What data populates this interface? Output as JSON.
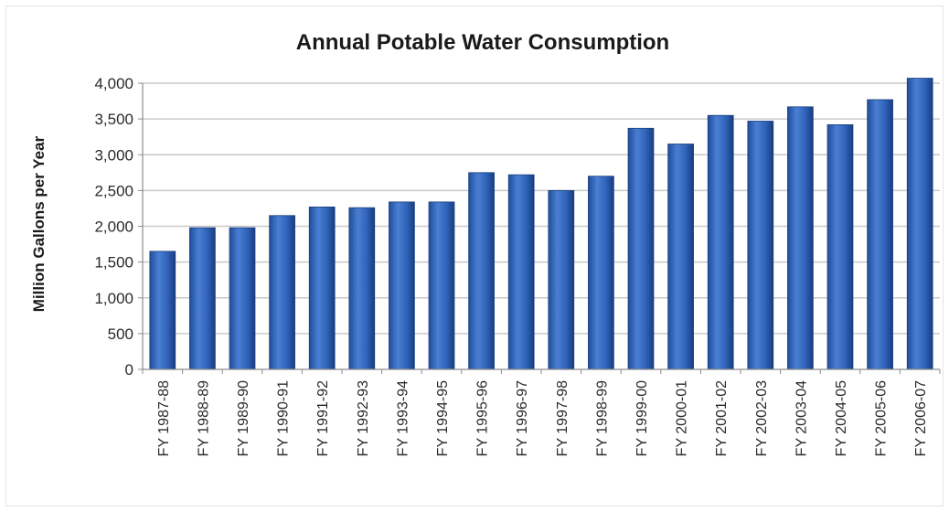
{
  "chart_data": {
    "type": "bar",
    "title": "Annual Potable Water Consumption",
    "xlabel": "",
    "ylabel": "Million Gallons per Year",
    "ylim": [
      0,
      4000
    ],
    "yticks": [
      "0",
      "500",
      "1,000",
      "1,500",
      "2,000",
      "2,500",
      "3,000",
      "3,500",
      "4,000"
    ],
    "grid": true,
    "legend": "none",
    "bar_color": "#2f5fb0",
    "categories": [
      "FY 1987-88",
      "FY 1988-89",
      "FY 1989-90",
      "FY 1990-91",
      "FY 1991-92",
      "FY 1992-93",
      "FY 1993-94",
      "FY 1994-95",
      "FY 1995-96",
      "FY 1996-97",
      "FY 1997-98",
      "FY 1998-99",
      "FY 1999-00",
      "FY 2000-01",
      "FY 2001-02",
      "FY 2002-03",
      "FY 2003-04",
      "FY 2004-05",
      "FY 2005-06",
      "FY 2006-07"
    ],
    "values": [
      1650,
      1980,
      1980,
      2150,
      2270,
      2260,
      2340,
      2340,
      2750,
      2720,
      2500,
      2700,
      3370,
      3150,
      3550,
      3470,
      3670,
      3420,
      3770,
      4070
    ]
  }
}
